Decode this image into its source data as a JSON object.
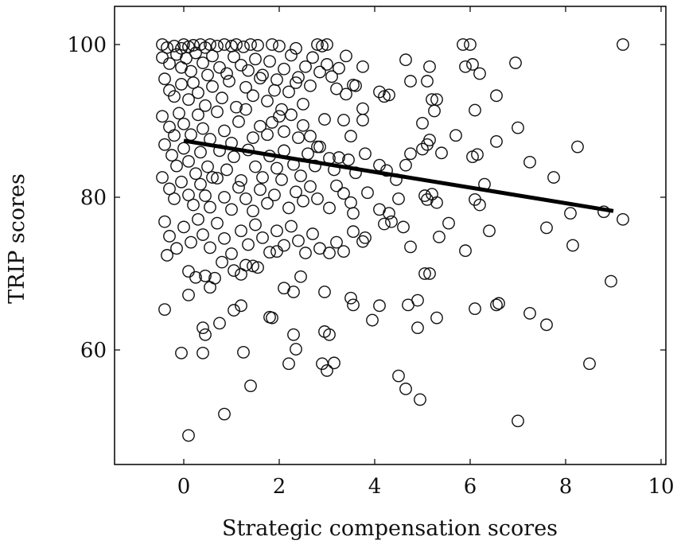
{
  "chart_data": {
    "type": "scatter",
    "xlabel": "Strategic compensation scores",
    "ylabel": "TRIP scores",
    "xlim": [
      -1.45,
      10.1
    ],
    "ylim": [
      45,
      105
    ],
    "x_ticks": [
      0,
      2,
      4,
      6,
      8,
      10
    ],
    "y_ticks": [
      60,
      80,
      100
    ],
    "x_tick_labels": [
      "0",
      "2",
      "4",
      "6",
      "8",
      "10"
    ],
    "y_tick_labels": [
      "60",
      "80",
      "100"
    ],
    "grid": false,
    "marker": "open-circle",
    "trend_line": {
      "x": [
        0,
        9.0
      ],
      "y": [
        87.4,
        78.2
      ]
    },
    "points": [
      [
        -0.45,
        100
      ],
      [
        -0.35,
        99.6
      ],
      [
        -0.2,
        99.8
      ],
      [
        -0.05,
        99.5
      ],
      [
        0.0,
        100
      ],
      [
        0.1,
        99.7
      ],
      [
        0.2,
        99.9
      ],
      [
        0.35,
        100
      ],
      [
        0.45,
        99.6
      ],
      [
        0.55,
        100
      ],
      [
        0.7,
        99.8
      ],
      [
        0.85,
        100
      ],
      [
        1.0,
        99.8
      ],
      [
        1.1,
        100
      ],
      [
        1.25,
        99.7
      ],
      [
        1.4,
        100
      ],
      [
        1.55,
        99.9
      ],
      [
        1.85,
        100
      ],
      [
        2.0,
        99.8
      ],
      [
        2.35,
        99.5
      ],
      [
        2.8,
        100
      ],
      [
        2.9,
        99.8
      ],
      [
        3.0,
        100
      ],
      [
        5.85,
        100
      ],
      [
        6.0,
        100
      ],
      [
        9.2,
        100
      ],
      [
        -0.45,
        98.3
      ],
      [
        -0.3,
        97.5
      ],
      [
        -0.15,
        98.7
      ],
      [
        -0.05,
        97.0
      ],
      [
        0.05,
        98.2
      ],
      [
        0.15,
        96.5
      ],
      [
        0.25,
        98.9
      ],
      [
        0.4,
        97.6
      ],
      [
        0.5,
        96.0
      ],
      [
        0.6,
        98.5
      ],
      [
        0.75,
        97.0
      ],
      [
        0.9,
        96.2
      ],
      [
        1.05,
        98.4
      ],
      [
        1.2,
        97.3
      ],
      [
        1.35,
        96.6
      ],
      [
        1.5,
        98.1
      ],
      [
        1.65,
        96.0
      ],
      [
        1.8,
        97.8
      ],
      [
        1.95,
        95.4
      ],
      [
        2.1,
        96.8
      ],
      [
        2.25,
        98.6
      ],
      [
        2.4,
        95.7
      ],
      [
        2.55,
        97.1
      ],
      [
        2.7,
        98.3
      ],
      [
        2.85,
        96.4
      ],
      [
        3.0,
        97.4
      ],
      [
        3.1,
        95.8
      ],
      [
        3.25,
        96.9
      ],
      [
        3.4,
        98.5
      ],
      [
        3.55,
        94.7
      ],
      [
        3.75,
        97.1
      ],
      [
        4.65,
        98.0
      ],
      [
        5.15,
        97.1
      ],
      [
        5.9,
        97.1
      ],
      [
        6.05,
        97.4
      ],
      [
        6.2,
        96.2
      ],
      [
        6.95,
        97.6
      ],
      [
        -0.4,
        95.5
      ],
      [
        -0.3,
        94.0
      ],
      [
        -0.2,
        93.2
      ],
      [
        -0.05,
        94.8
      ],
      [
        0.1,
        92.8
      ],
      [
        0.2,
        95.0
      ],
      [
        0.3,
        93.7
      ],
      [
        0.45,
        92.0
      ],
      [
        0.6,
        94.5
      ],
      [
        0.8,
        93.0
      ],
      [
        0.95,
        95.2
      ],
      [
        1.1,
        91.8
      ],
      [
        1.3,
        94.4
      ],
      [
        1.45,
        93.3
      ],
      [
        1.6,
        95.6
      ],
      [
        1.75,
        92.6
      ],
      [
        1.9,
        94.0
      ],
      [
        2.05,
        91.5
      ],
      [
        2.2,
        93.8
      ],
      [
        2.35,
        95.0
      ],
      [
        2.5,
        92.2
      ],
      [
        2.65,
        94.6
      ],
      [
        3.2,
        94.2
      ],
      [
        3.4,
        93.5
      ],
      [
        3.6,
        94.6
      ],
      [
        4.1,
        93.8
      ],
      [
        4.2,
        93.2
      ],
      [
        4.3,
        93.4
      ],
      [
        4.75,
        95.2
      ],
      [
        5.1,
        95.2
      ],
      [
        5.2,
        92.8
      ],
      [
        5.25,
        91.3
      ],
      [
        5.3,
        92.8
      ],
      [
        6.1,
        91.4
      ],
      [
        6.55,
        93.3
      ],
      [
        -0.45,
        90.6
      ],
      [
        -0.3,
        89.2
      ],
      [
        -0.2,
        88.1
      ],
      [
        -0.1,
        91.0
      ],
      [
        0.0,
        89.6
      ],
      [
        0.15,
        88.2
      ],
      [
        0.3,
        90.8
      ],
      [
        0.4,
        89.0
      ],
      [
        0.55,
        87.6
      ],
      [
        0.7,
        91.2
      ],
      [
        0.85,
        88.7
      ],
      [
        1.0,
        87.1
      ],
      [
        1.15,
        89.9
      ],
      [
        1.3,
        91.5
      ],
      [
        1.45,
        87.8
      ],
      [
        1.6,
        89.3
      ],
      [
        1.75,
        88.2
      ],
      [
        1.85,
        89.8
      ],
      [
        2.0,
        90.6
      ],
      [
        2.1,
        88.6
      ],
      [
        2.25,
        90.8
      ],
      [
        2.4,
        87.8
      ],
      [
        2.5,
        89.4
      ],
      [
        2.65,
        88.0
      ],
      [
        2.8,
        86.6
      ],
      [
        2.95,
        90.2
      ],
      [
        3.35,
        90.1
      ],
      [
        3.5,
        88.0
      ],
      [
        3.75,
        91.6
      ],
      [
        3.75,
        90.1
      ],
      [
        5.0,
        89.7
      ],
      [
        5.15,
        87.5
      ],
      [
        5.7,
        88.1
      ],
      [
        6.55,
        87.3
      ],
      [
        7.0,
        89.1
      ],
      [
        -0.4,
        86.9
      ],
      [
        -0.25,
        85.5
      ],
      [
        -0.15,
        84.1
      ],
      [
        0.0,
        86.4
      ],
      [
        0.1,
        84.7
      ],
      [
        0.25,
        83.1
      ],
      [
        0.35,
        85.9
      ],
      [
        0.5,
        84.0
      ],
      [
        0.6,
        82.6
      ],
      [
        0.75,
        86.1
      ],
      [
        0.9,
        83.6
      ],
      [
        1.05,
        85.3
      ],
      [
        1.2,
        82.2
      ],
      [
        1.35,
        86.2
      ],
      [
        1.5,
        84.0
      ],
      [
        1.65,
        82.6
      ],
      [
        1.8,
        85.4
      ],
      [
        1.95,
        83.8
      ],
      [
        2.1,
        86.1
      ],
      [
        2.3,
        84.3
      ],
      [
        2.45,
        82.8
      ],
      [
        2.6,
        85.7
      ],
      [
        2.75,
        84.1
      ],
      [
        2.85,
        86.6
      ],
      [
        3.05,
        85.1
      ],
      [
        3.15,
        83.6
      ],
      [
        3.25,
        85.2
      ],
      [
        3.45,
        84.9
      ],
      [
        3.6,
        83.2
      ],
      [
        3.8,
        85.7
      ],
      [
        4.1,
        84.2
      ],
      [
        4.25,
        83.5
      ],
      [
        4.45,
        82.3
      ],
      [
        4.65,
        84.2
      ],
      [
        4.75,
        85.7
      ],
      [
        5.0,
        86.3
      ],
      [
        5.1,
        86.9
      ],
      [
        5.4,
        85.8
      ],
      [
        6.05,
        85.3
      ],
      [
        6.15,
        85.6
      ],
      [
        7.25,
        84.6
      ],
      [
        8.25,
        86.6
      ],
      [
        -0.45,
        82.6
      ],
      [
        -0.3,
        81.1
      ],
      [
        -0.2,
        79.8
      ],
      [
        -0.05,
        82.0
      ],
      [
        0.1,
        80.3
      ],
      [
        0.2,
        79.0
      ],
      [
        0.35,
        81.7
      ],
      [
        0.45,
        80.2
      ],
      [
        0.55,
        78.7
      ],
      [
        0.7,
        82.5
      ],
      [
        0.85,
        80.0
      ],
      [
        1.0,
        78.4
      ],
      [
        1.15,
        81.3
      ],
      [
        1.3,
        79.8
      ],
      [
        1.45,
        78.2
      ],
      [
        1.6,
        81.0
      ],
      [
        1.75,
        79.2
      ],
      [
        1.9,
        80.3
      ],
      [
        2.05,
        82.3
      ],
      [
        2.2,
        78.6
      ],
      [
        2.35,
        80.7
      ],
      [
        2.5,
        79.5
      ],
      [
        2.65,
        81.4
      ],
      [
        2.8,
        79.8
      ],
      [
        3.05,
        78.6
      ],
      [
        3.2,
        81.5
      ],
      [
        3.35,
        80.5
      ],
      [
        3.5,
        79.3
      ],
      [
        3.55,
        77.9
      ],
      [
        3.85,
        80.6
      ],
      [
        4.1,
        78.4
      ],
      [
        4.3,
        77.9
      ],
      [
        4.5,
        79.8
      ],
      [
        5.05,
        80.2
      ],
      [
        5.1,
        79.7
      ],
      [
        5.2,
        80.4
      ],
      [
        5.3,
        79.3
      ],
      [
        5.55,
        76.6
      ],
      [
        6.1,
        79.7
      ],
      [
        6.2,
        79.0
      ],
      [
        6.3,
        81.7
      ],
      [
        7.75,
        82.6
      ],
      [
        -0.4,
        76.8
      ],
      [
        -0.3,
        74.9
      ],
      [
        -0.15,
        73.3
      ],
      [
        0.0,
        76.1
      ],
      [
        0.15,
        74.1
      ],
      [
        0.3,
        77.1
      ],
      [
        0.4,
        75.1
      ],
      [
        0.55,
        73.4
      ],
      [
        0.7,
        76.6
      ],
      [
        0.85,
        74.6
      ],
      [
        1.0,
        72.6
      ],
      [
        1.2,
        75.6
      ],
      [
        1.35,
        73.8
      ],
      [
        1.5,
        76.4
      ],
      [
        1.65,
        74.7
      ],
      [
        1.8,
        72.8
      ],
      [
        1.95,
        75.6
      ],
      [
        2.1,
        73.7
      ],
      [
        2.25,
        76.2
      ],
      [
        2.4,
        74.3
      ],
      [
        2.55,
        72.7
      ],
      [
        2.7,
        75.2
      ],
      [
        2.85,
        73.3
      ],
      [
        3.05,
        72.7
      ],
      [
        3.2,
        74.1
      ],
      [
        3.35,
        72.9
      ],
      [
        3.55,
        75.5
      ],
      [
        3.75,
        74.2
      ],
      [
        3.8,
        74.7
      ],
      [
        4.2,
        76.5
      ],
      [
        4.35,
        76.8
      ],
      [
        4.6,
        76.1
      ],
      [
        4.75,
        73.5
      ],
      [
        5.35,
        74.8
      ],
      [
        5.9,
        73.0
      ],
      [
        6.4,
        75.6
      ],
      [
        7.6,
        76.0
      ],
      [
        8.15,
        73.7
      ],
      [
        8.1,
        77.9
      ],
      [
        8.8,
        78.1
      ],
      [
        9.2,
        77.1
      ],
      [
        -0.35,
        72.4
      ],
      [
        0.1,
        70.3
      ],
      [
        0.25,
        69.5
      ],
      [
        0.45,
        69.7
      ],
      [
        0.55,
        68.2
      ],
      [
        0.65,
        69.4
      ],
      [
        0.8,
        71.5
      ],
      [
        1.05,
        70.4
      ],
      [
        1.2,
        69.9
      ],
      [
        1.3,
        71.1
      ],
      [
        1.45,
        71.0
      ],
      [
        1.55,
        70.8
      ],
      [
        1.95,
        72.9
      ],
      [
        2.1,
        68.1
      ],
      [
        2.3,
        67.6
      ],
      [
        2.45,
        69.6
      ],
      [
        2.95,
        67.6
      ],
      [
        3.5,
        66.8
      ],
      [
        3.55,
        65.9
      ],
      [
        4.1,
        65.8
      ],
      [
        4.7,
        65.9
      ],
      [
        4.9,
        66.5
      ],
      [
        5.05,
        70.0
      ],
      [
        5.15,
        70.0
      ],
      [
        6.1,
        65.4
      ],
      [
        6.55,
        65.9
      ],
      [
        6.6,
        66.1
      ],
      [
        7.25,
        64.8
      ],
      [
        7.6,
        63.3
      ],
      [
        8.95,
        69.0
      ],
      [
        -0.4,
        65.3
      ],
      [
        0.1,
        67.2
      ],
      [
        0.4,
        62.9
      ],
      [
        0.45,
        62.0
      ],
      [
        0.75,
        63.5
      ],
      [
        1.05,
        65.2
      ],
      [
        1.2,
        65.8
      ],
      [
        1.8,
        64.3
      ],
      [
        1.85,
        64.2
      ],
      [
        2.3,
        62.0
      ],
      [
        2.95,
        62.4
      ],
      [
        3.05,
        62.0
      ],
      [
        3.95,
        63.9
      ],
      [
        4.9,
        62.9
      ],
      [
        5.3,
        64.2
      ],
      [
        -0.05,
        59.6
      ],
      [
        0.4,
        59.6
      ],
      [
        1.25,
        59.7
      ],
      [
        2.2,
        58.2
      ],
      [
        2.35,
        60.1
      ],
      [
        2.9,
        58.2
      ],
      [
        3.0,
        57.3
      ],
      [
        3.15,
        58.3
      ],
      [
        1.4,
        55.3
      ],
      [
        4.5,
        56.6
      ],
      [
        4.65,
        54.9
      ],
      [
        4.95,
        53.5
      ],
      [
        8.5,
        58.2
      ],
      [
        0.85,
        51.6
      ],
      [
        7.0,
        50.7
      ],
      [
        0.1,
        48.8
      ]
    ]
  }
}
